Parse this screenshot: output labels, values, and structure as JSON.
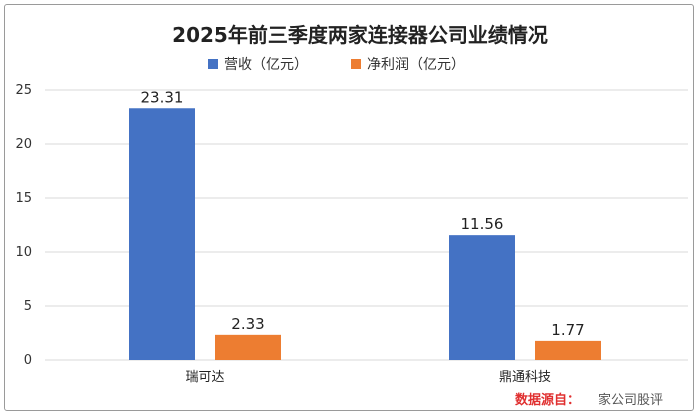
{
  "chart_data": {
    "type": "bar",
    "title": "2025年前三季度两家连接器公司业绩情况",
    "categories": [
      "瑞可达",
      "鼎通科技"
    ],
    "series": [
      {
        "name": "营收（亿元）",
        "values": [
          23.31,
          11.56
        ],
        "color": "#4472C4"
      },
      {
        "name": "净利润（亿元）",
        "values": [
          2.33,
          1.77
        ],
        "color": "#ED7D31"
      }
    ],
    "y_ticks": [
      "0",
      "5",
      "10",
      "15",
      "20",
      "25"
    ],
    "ylim": [
      0,
      25
    ],
    "grid": true,
    "legend": "top-center",
    "data_labels": [
      "23.31",
      "11.56",
      "2.33",
      "1.77"
    ],
    "source": "数据源自：",
    "watermark": "家公司股评"
  }
}
